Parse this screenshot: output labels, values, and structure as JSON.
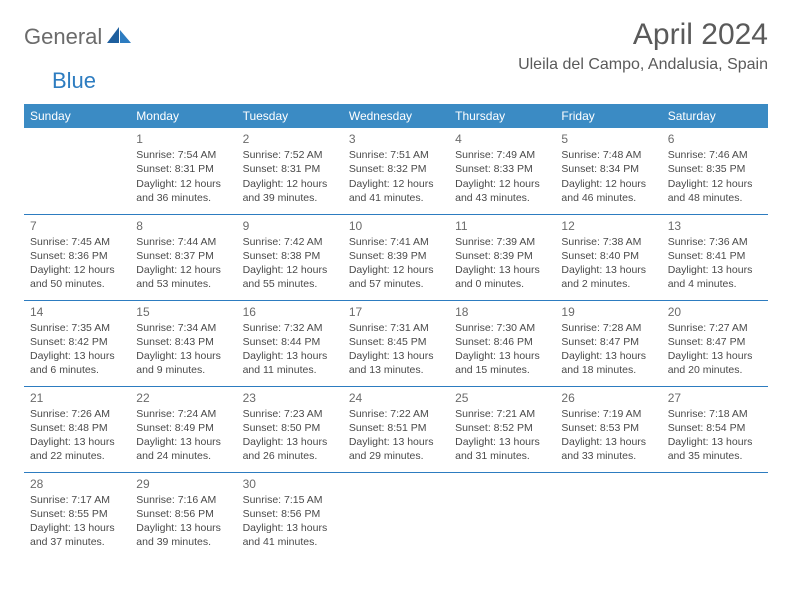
{
  "logo": {
    "general": "General",
    "blue": "Blue"
  },
  "title": "April 2024",
  "location": "Uleila del Campo, Andalusia, Spain",
  "colors": {
    "header_bg": "#3b8bc4",
    "header_text": "#ffffff",
    "border": "#2d7cc0",
    "text": "#4a4a4a",
    "daynum": "#6b6b6b",
    "title_color": "#5a5a5a",
    "logo_gray": "#6b6b6b",
    "logo_blue": "#2d7cc0",
    "background": "#ffffff"
  },
  "typography": {
    "title_fontsize": 30,
    "location_fontsize": 16,
    "header_fontsize": 12,
    "daynum_fontsize": 12,
    "cell_fontsize": 10.5
  },
  "weekdays": [
    "Sunday",
    "Monday",
    "Tuesday",
    "Wednesday",
    "Thursday",
    "Friday",
    "Saturday"
  ],
  "weeks": [
    [
      null,
      {
        "n": "1",
        "sr": "Sunrise: 7:54 AM",
        "ss": "Sunset: 8:31 PM",
        "d1": "Daylight: 12 hours",
        "d2": "and 36 minutes."
      },
      {
        "n": "2",
        "sr": "Sunrise: 7:52 AM",
        "ss": "Sunset: 8:31 PM",
        "d1": "Daylight: 12 hours",
        "d2": "and 39 minutes."
      },
      {
        "n": "3",
        "sr": "Sunrise: 7:51 AM",
        "ss": "Sunset: 8:32 PM",
        "d1": "Daylight: 12 hours",
        "d2": "and 41 minutes."
      },
      {
        "n": "4",
        "sr": "Sunrise: 7:49 AM",
        "ss": "Sunset: 8:33 PM",
        "d1": "Daylight: 12 hours",
        "d2": "and 43 minutes."
      },
      {
        "n": "5",
        "sr": "Sunrise: 7:48 AM",
        "ss": "Sunset: 8:34 PM",
        "d1": "Daylight: 12 hours",
        "d2": "and 46 minutes."
      },
      {
        "n": "6",
        "sr": "Sunrise: 7:46 AM",
        "ss": "Sunset: 8:35 PM",
        "d1": "Daylight: 12 hours",
        "d2": "and 48 minutes."
      }
    ],
    [
      {
        "n": "7",
        "sr": "Sunrise: 7:45 AM",
        "ss": "Sunset: 8:36 PM",
        "d1": "Daylight: 12 hours",
        "d2": "and 50 minutes."
      },
      {
        "n": "8",
        "sr": "Sunrise: 7:44 AM",
        "ss": "Sunset: 8:37 PM",
        "d1": "Daylight: 12 hours",
        "d2": "and 53 minutes."
      },
      {
        "n": "9",
        "sr": "Sunrise: 7:42 AM",
        "ss": "Sunset: 8:38 PM",
        "d1": "Daylight: 12 hours",
        "d2": "and 55 minutes."
      },
      {
        "n": "10",
        "sr": "Sunrise: 7:41 AM",
        "ss": "Sunset: 8:39 PM",
        "d1": "Daylight: 12 hours",
        "d2": "and 57 minutes."
      },
      {
        "n": "11",
        "sr": "Sunrise: 7:39 AM",
        "ss": "Sunset: 8:39 PM",
        "d1": "Daylight: 13 hours",
        "d2": "and 0 minutes."
      },
      {
        "n": "12",
        "sr": "Sunrise: 7:38 AM",
        "ss": "Sunset: 8:40 PM",
        "d1": "Daylight: 13 hours",
        "d2": "and 2 minutes."
      },
      {
        "n": "13",
        "sr": "Sunrise: 7:36 AM",
        "ss": "Sunset: 8:41 PM",
        "d1": "Daylight: 13 hours",
        "d2": "and 4 minutes."
      }
    ],
    [
      {
        "n": "14",
        "sr": "Sunrise: 7:35 AM",
        "ss": "Sunset: 8:42 PM",
        "d1": "Daylight: 13 hours",
        "d2": "and 6 minutes."
      },
      {
        "n": "15",
        "sr": "Sunrise: 7:34 AM",
        "ss": "Sunset: 8:43 PM",
        "d1": "Daylight: 13 hours",
        "d2": "and 9 minutes."
      },
      {
        "n": "16",
        "sr": "Sunrise: 7:32 AM",
        "ss": "Sunset: 8:44 PM",
        "d1": "Daylight: 13 hours",
        "d2": "and 11 minutes."
      },
      {
        "n": "17",
        "sr": "Sunrise: 7:31 AM",
        "ss": "Sunset: 8:45 PM",
        "d1": "Daylight: 13 hours",
        "d2": "and 13 minutes."
      },
      {
        "n": "18",
        "sr": "Sunrise: 7:30 AM",
        "ss": "Sunset: 8:46 PM",
        "d1": "Daylight: 13 hours",
        "d2": "and 15 minutes."
      },
      {
        "n": "19",
        "sr": "Sunrise: 7:28 AM",
        "ss": "Sunset: 8:47 PM",
        "d1": "Daylight: 13 hours",
        "d2": "and 18 minutes."
      },
      {
        "n": "20",
        "sr": "Sunrise: 7:27 AM",
        "ss": "Sunset: 8:47 PM",
        "d1": "Daylight: 13 hours",
        "d2": "and 20 minutes."
      }
    ],
    [
      {
        "n": "21",
        "sr": "Sunrise: 7:26 AM",
        "ss": "Sunset: 8:48 PM",
        "d1": "Daylight: 13 hours",
        "d2": "and 22 minutes."
      },
      {
        "n": "22",
        "sr": "Sunrise: 7:24 AM",
        "ss": "Sunset: 8:49 PM",
        "d1": "Daylight: 13 hours",
        "d2": "and 24 minutes."
      },
      {
        "n": "23",
        "sr": "Sunrise: 7:23 AM",
        "ss": "Sunset: 8:50 PM",
        "d1": "Daylight: 13 hours",
        "d2": "and 26 minutes."
      },
      {
        "n": "24",
        "sr": "Sunrise: 7:22 AM",
        "ss": "Sunset: 8:51 PM",
        "d1": "Daylight: 13 hours",
        "d2": "and 29 minutes."
      },
      {
        "n": "25",
        "sr": "Sunrise: 7:21 AM",
        "ss": "Sunset: 8:52 PM",
        "d1": "Daylight: 13 hours",
        "d2": "and 31 minutes."
      },
      {
        "n": "26",
        "sr": "Sunrise: 7:19 AM",
        "ss": "Sunset: 8:53 PM",
        "d1": "Daylight: 13 hours",
        "d2": "and 33 minutes."
      },
      {
        "n": "27",
        "sr": "Sunrise: 7:18 AM",
        "ss": "Sunset: 8:54 PM",
        "d1": "Daylight: 13 hours",
        "d2": "and 35 minutes."
      }
    ],
    [
      {
        "n": "28",
        "sr": "Sunrise: 7:17 AM",
        "ss": "Sunset: 8:55 PM",
        "d1": "Daylight: 13 hours",
        "d2": "and 37 minutes."
      },
      {
        "n": "29",
        "sr": "Sunrise: 7:16 AM",
        "ss": "Sunset: 8:56 PM",
        "d1": "Daylight: 13 hours",
        "d2": "and 39 minutes."
      },
      {
        "n": "30",
        "sr": "Sunrise: 7:15 AM",
        "ss": "Sunset: 8:56 PM",
        "d1": "Daylight: 13 hours",
        "d2": "and 41 minutes."
      },
      null,
      null,
      null,
      null
    ]
  ]
}
